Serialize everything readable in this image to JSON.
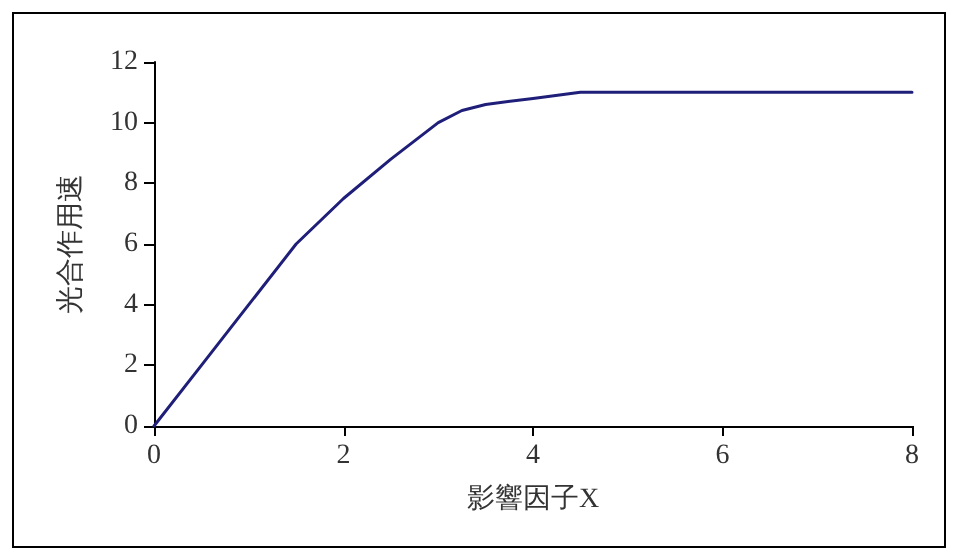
{
  "chart_data": {
    "type": "line",
    "xlabel": "影響因子X",
    "ylabel": "光合作用速",
    "series": [
      {
        "color": "#1f1f7a",
        "x": [
          0,
          0.5,
          1,
          1.5,
          2,
          2.5,
          2.75,
          3,
          3.25,
          3.5,
          4,
          4.5,
          5,
          6,
          7,
          8
        ],
        "values": [
          0,
          2,
          4,
          6,
          7.5,
          8.8,
          9.4,
          10,
          10.4,
          10.6,
          10.8,
          11,
          11,
          11,
          11,
          11
        ]
      }
    ],
    "xlim": [
      0,
      8
    ],
    "xticks": [
      0,
      2,
      4,
      6,
      8
    ],
    "ylim": [
      0,
      12
    ],
    "yticks": [
      0,
      2,
      4,
      6,
      8,
      10,
      12
    ],
    "grid": false,
    "marker": "none",
    "line_style": "solid"
  }
}
